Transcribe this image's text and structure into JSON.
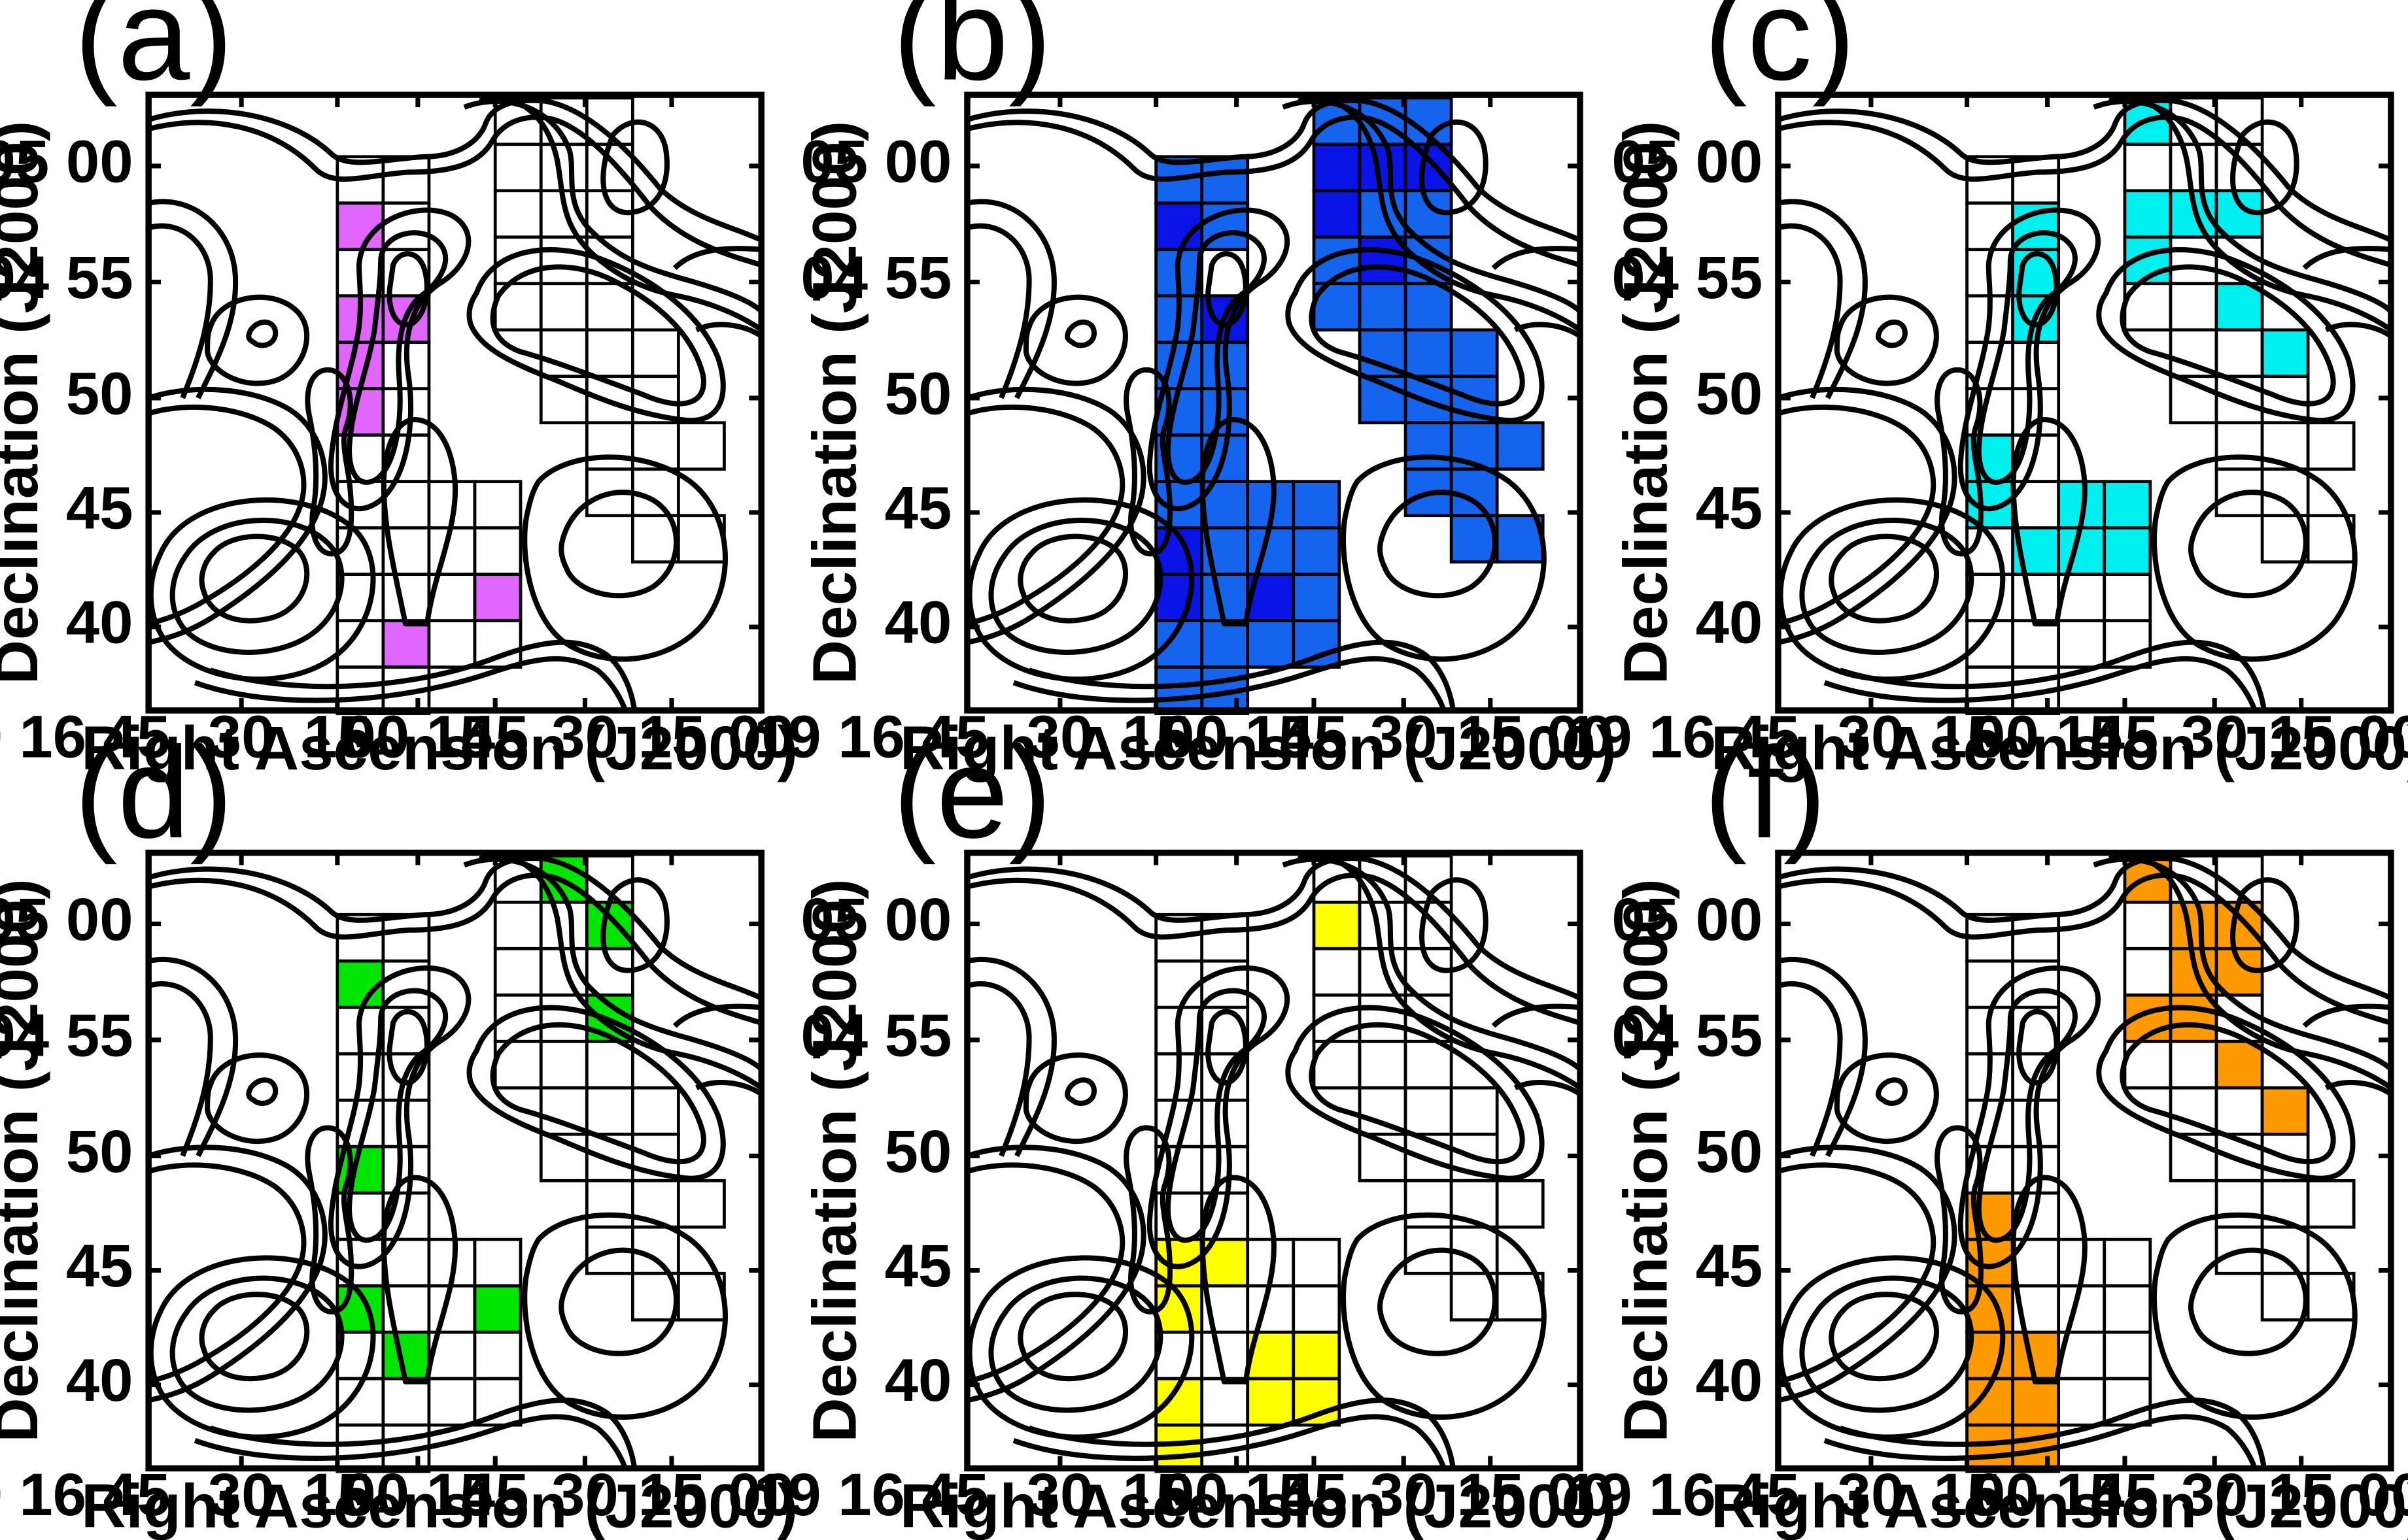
{
  "figure": {
    "ra_axis_label": "Right Ascension (J2000)",
    "dec_axis_label": "Declination (J2000)"
  },
  "chart_data": [
    {
      "type": "heatmap",
      "panel_label": "(a)",
      "highlight_color": "#e066ff",
      "highlighted_cells": [
        [
          0,
          1
        ],
        [
          0,
          3
        ],
        [
          0,
          4
        ],
        [
          0,
          5
        ],
        [
          1,
          3
        ],
        [
          1,
          10
        ],
        [
          3,
          9
        ]
      ]
    },
    {
      "type": "heatmap",
      "panel_label": "(b)",
      "fill_color_a": "#1464ee",
      "fill_color_b": "#0a14e6",
      "highlighted_cells": "all"
    },
    {
      "type": "heatmap",
      "panel_label": "(c)",
      "highlight_color": "#00f0f0",
      "highlighted_cells": [
        [
          1,
          1
        ],
        [
          2,
          1
        ],
        [
          1,
          2
        ],
        [
          2,
          2
        ],
        [
          1,
          3
        ],
        [
          2,
          3
        ],
        [
          0,
          6
        ],
        [
          0,
          7
        ],
        [
          2,
          7
        ],
        [
          3,
          7
        ],
        [
          4,
          7
        ],
        [
          1,
          8
        ],
        [
          2,
          8
        ],
        [
          3,
          8
        ],
        [
          4,
          0
        ],
        [
          4,
          2
        ],
        [
          4,
          3
        ],
        [
          5,
          2
        ],
        [
          6,
          2
        ],
        [
          6,
          4
        ],
        [
          7,
          4
        ],
        [
          7,
          5
        ],
        [
          8,
          5
        ],
        [
          8,
          6
        ],
        [
          9,
          6
        ],
        [
          10,
          6
        ]
      ]
    },
    {
      "type": "heatmap",
      "panel_label": "(d)",
      "highlight_color": "#00e600",
      "highlighted_cells": [
        [
          0,
          1
        ],
        [
          0,
          5
        ],
        [
          0,
          8
        ],
        [
          1,
          9
        ],
        [
          3,
          8
        ],
        [
          5,
          0
        ],
        [
          6,
          1
        ],
        [
          6,
          3
        ]
      ]
    },
    {
      "type": "heatmap",
      "panel_label": "(e)",
      "highlight_color": "#ffff00",
      "highlighted_cells": [
        [
          4,
          1
        ],
        [
          2,
          3
        ],
        [
          3,
          3
        ],
        [
          2,
          4
        ],
        [
          0,
          7
        ],
        [
          1,
          7
        ],
        [
          0,
          8
        ],
        [
          2,
          9
        ],
        [
          3,
          9
        ],
        [
          2,
          10
        ],
        [
          3,
          10
        ],
        [
          0,
          10
        ],
        [
          0,
          11
        ]
      ]
    },
    {
      "type": "heatmap",
      "panel_label": "(f)",
      "highlight_color": "#ff9900",
      "highlighted_cells": [
        [
          4,
          0
        ],
        [
          5,
          1
        ],
        [
          6,
          1
        ],
        [
          5,
          2
        ],
        [
          6,
          2
        ],
        [
          7,
          2
        ],
        [
          4,
          3
        ],
        [
          5,
          3
        ],
        [
          6,
          4
        ],
        [
          7,
          4
        ],
        [
          8,
          4
        ],
        [
          7,
          5
        ],
        [
          8,
          5
        ],
        [
          9,
          6
        ],
        [
          10,
          6
        ],
        [
          3,
          5
        ],
        [
          0,
          6
        ],
        [
          0,
          7
        ],
        [
          0,
          8
        ],
        [
          0,
          9
        ],
        [
          0,
          10
        ],
        [
          0,
          11
        ],
        [
          1,
          9
        ],
        [
          1,
          10
        ],
        [
          1,
          11
        ],
        [
          4,
          8
        ]
      ]
    }
  ]
}
